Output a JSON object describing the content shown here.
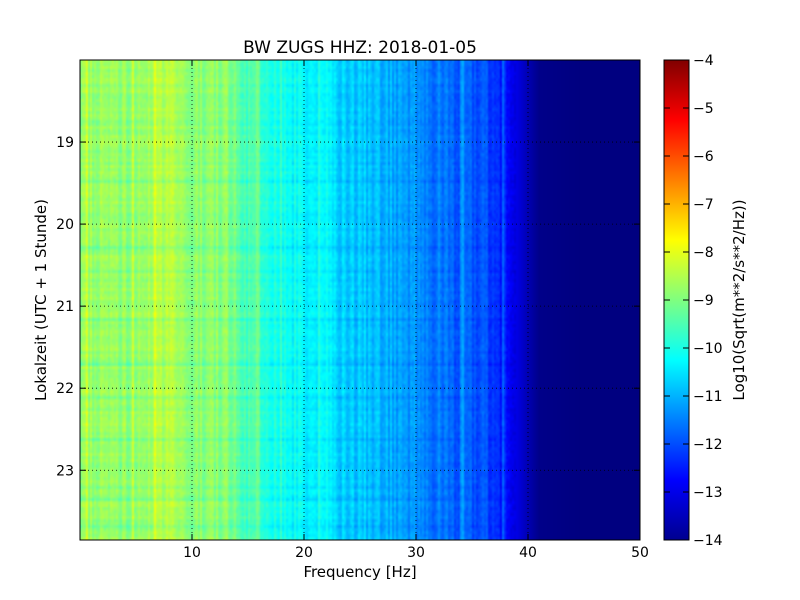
{
  "chart_data": {
    "type": "heatmap",
    "title": "BW ZUGS HHZ: 2018-01-05",
    "xlabel": "Frequency [Hz]",
    "ylabel": "Lokalzeit (UTC + 1 Stunde)",
    "xlim": [
      0,
      50
    ],
    "ylim": [
      18.0,
      23.85
    ],
    "y_inverted": true,
    "x_ticks": [
      10,
      20,
      30,
      40,
      50
    ],
    "y_ticks": [
      19,
      20,
      21,
      22,
      23
    ],
    "grid": true,
    "colorbar": {
      "label": "Log10(Sqrt(m**2/s**2/Hz))",
      "colormap": "jet",
      "range": [
        -14,
        -4
      ],
      "ticks": [
        -4,
        -5,
        -6,
        -7,
        -8,
        -9,
        -10,
        -11,
        -12,
        -13,
        -14
      ]
    },
    "frequency_profile": {
      "frequencies_hz": [
        0,
        2,
        5,
        7,
        9,
        11,
        13,
        15,
        17,
        19,
        21,
        23,
        25,
        27,
        29,
        31,
        33,
        35,
        36.5,
        38,
        39,
        40,
        41,
        45,
        50
      ],
      "log_amplitude": [
        -8.7,
        -8.8,
        -8.9,
        -8.5,
        -8.6,
        -9.0,
        -8.8,
        -9.6,
        -10.0,
        -10.2,
        -10.4,
        -10.6,
        -10.8,
        -11.0,
        -11.3,
        -11.5,
        -11.7,
        -11.9,
        -12.1,
        -12.5,
        -13.0,
        -13.5,
        -13.9,
        -14.0,
        -14.0
      ]
    }
  }
}
